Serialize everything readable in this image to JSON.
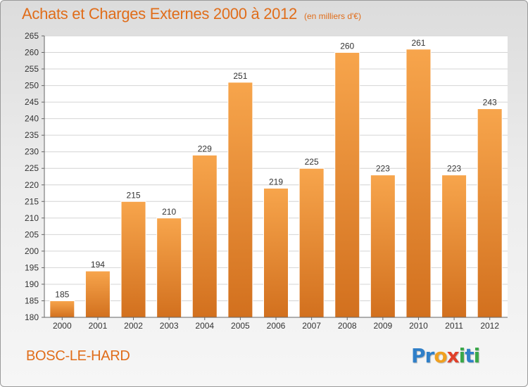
{
  "header": {
    "title": "Achats et Charges Externes 2000 à 2012",
    "subtitle": "(en milliers d'€)"
  },
  "footer": {
    "commune": "BOSC-LE-HARD",
    "logo_letters": [
      {
        "char": "P",
        "color": "#2f7fc8"
      },
      {
        "char": "r",
        "color": "#2f7fc8"
      },
      {
        "char": "o",
        "color": "#f0a020"
      },
      {
        "char": "x",
        "color": "#e0402a"
      },
      {
        "char": "i",
        "color": "#3aa84a"
      },
      {
        "char": "t",
        "color": "#2f7fc8"
      },
      {
        "char": "i",
        "color": "#3aa84a"
      }
    ]
  },
  "chart_data": {
    "type": "bar",
    "title": "Achats et Charges Externes 2000 à 2012",
    "subtitle": "(en milliers d'€)",
    "xlabel": "",
    "ylabel": "",
    "categories": [
      "2000",
      "2001",
      "2002",
      "2003",
      "2004",
      "2005",
      "2006",
      "2007",
      "2008",
      "2009",
      "2010",
      "2011",
      "2012"
    ],
    "values": [
      185,
      194,
      215,
      210,
      229,
      251,
      219,
      225,
      260,
      223,
      261,
      223,
      243
    ],
    "ylim": [
      180,
      265
    ],
    "yticks": [
      180,
      185,
      190,
      195,
      200,
      205,
      210,
      215,
      220,
      225,
      230,
      235,
      240,
      245,
      250,
      255,
      260,
      265
    ],
    "grid": true,
    "legend": "none",
    "bar_color_top": "#f7a54c",
    "bar_color_bottom": "#d2701e",
    "grid_color": "#d4d4d4"
  }
}
